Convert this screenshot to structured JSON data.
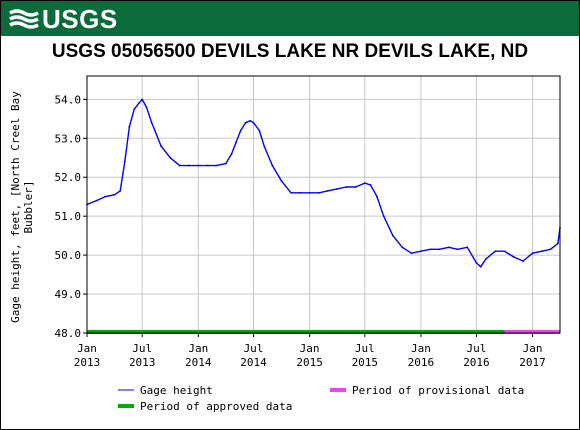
{
  "header": {
    "logo_text": "USGS",
    "brand_color": "#0b6b3a"
  },
  "chart_data": {
    "type": "line",
    "title": "USGS 05056500 DEVILS LAKE NR DEVILS LAKE, ND",
    "ylabel_line1": "Gage height, feet, [North Creel Bay",
    "ylabel_line2": "Bubbler]",
    "xlabel": "",
    "ylim": [
      48.0,
      54.6
    ],
    "y_ticks": [
      "48.0",
      "49.0",
      "50.0",
      "51.0",
      "52.0",
      "53.0",
      "54.0"
    ],
    "x_ticks": [
      {
        "top": "Jan",
        "bottom": "2013"
      },
      {
        "top": "Jul",
        "bottom": "2013"
      },
      {
        "top": "Jan",
        "bottom": "2014"
      },
      {
        "top": "Jul",
        "bottom": "2014"
      },
      {
        "top": "Jan",
        "bottom": "2015"
      },
      {
        "top": "Jul",
        "bottom": "2015"
      },
      {
        "top": "Jan",
        "bottom": "2016"
      },
      {
        "top": "Jul",
        "bottom": "2016"
      },
      {
        "top": "Jan",
        "bottom": "2017"
      }
    ],
    "grid": true,
    "series": [
      {
        "name": "Gage height",
        "color": "#0000ff",
        "x": [
          "2013-01-01",
          "2013-02-01",
          "2013-03-01",
          "2013-04-01",
          "2013-04-20",
          "2013-05-05",
          "2013-05-20",
          "2013-06-05",
          "2013-06-20",
          "2013-07-01",
          "2013-07-15",
          "2013-08-01",
          "2013-09-01",
          "2013-10-01",
          "2013-11-01",
          "2013-12-01",
          "2014-01-01",
          "2014-02-01",
          "2014-03-01",
          "2014-04-01",
          "2014-04-20",
          "2014-05-05",
          "2014-05-20",
          "2014-06-05",
          "2014-06-20",
          "2014-07-01",
          "2014-07-20",
          "2014-08-05",
          "2014-09-01",
          "2014-10-01",
          "2014-11-01",
          "2014-12-01",
          "2015-01-01",
          "2015-02-01",
          "2015-03-01",
          "2015-04-01",
          "2015-05-01",
          "2015-06-01",
          "2015-07-01",
          "2015-07-20",
          "2015-08-10",
          "2015-09-01",
          "2015-10-01",
          "2015-11-01",
          "2015-12-01",
          "2016-01-01",
          "2016-02-01",
          "2016-03-01",
          "2016-04-01",
          "2016-05-01",
          "2016-06-01",
          "2016-07-01",
          "2016-07-15",
          "2016-08-01",
          "2016-09-01",
          "2016-10-01",
          "2016-11-01",
          "2016-12-01",
          "2017-01-01",
          "2017-02-01",
          "2017-03-01",
          "2017-03-25",
          "2017-04-01"
        ],
        "values": [
          51.3,
          51.4,
          51.5,
          51.55,
          51.65,
          52.4,
          53.3,
          53.75,
          53.9,
          54.0,
          53.8,
          53.4,
          52.8,
          52.5,
          52.3,
          52.3,
          52.3,
          52.3,
          52.3,
          52.35,
          52.6,
          52.9,
          53.2,
          53.4,
          53.45,
          53.4,
          53.2,
          52.8,
          52.3,
          51.9,
          51.6,
          51.6,
          51.6,
          51.6,
          51.65,
          51.7,
          51.75,
          51.75,
          51.85,
          51.8,
          51.5,
          51.0,
          50.5,
          50.2,
          50.05,
          50.1,
          50.15,
          50.15,
          50.2,
          50.15,
          50.2,
          49.8,
          49.7,
          49.9,
          50.1,
          50.1,
          49.95,
          49.85,
          50.05,
          50.1,
          50.15,
          50.3,
          50.7
        ]
      }
    ],
    "periods": [
      {
        "name": "Period of approved data",
        "color": "#00aa00",
        "start": "2013-01-01",
        "end": "2016-10-01"
      },
      {
        "name": "Period of provisional data",
        "color": "#ee44ee",
        "start": "2016-10-01",
        "end": "2017-04-01"
      }
    ],
    "legend": {
      "placement": "bottom",
      "items": [
        {
          "label": "Gage height",
          "color": "#0000ff",
          "kind": "line-thin"
        },
        {
          "label": "Period of provisional data",
          "color": "#ee44ee",
          "kind": "bar"
        },
        {
          "label": "Period of approved data",
          "color": "#00aa00",
          "kind": "bar"
        }
      ]
    }
  }
}
